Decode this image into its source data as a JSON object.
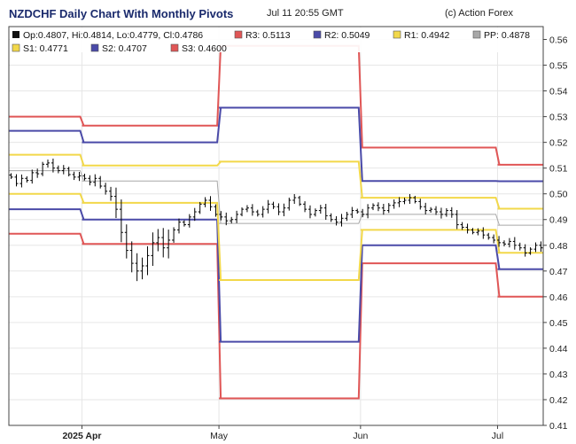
{
  "header": {
    "title": "NZDCHF Daily Chart With Monthly Pivots",
    "timestamp": "Jul 11 20:55 GMT",
    "credit": "(c) Action Forex"
  },
  "colors": {
    "r3": "#e05656",
    "r2": "#4a4aa8",
    "r1": "#f2d84a",
    "pp": "#a8a8a8",
    "s1": "#f2d84a",
    "s2": "#4a4aa8",
    "s3": "#e05656",
    "candle": "#000000",
    "grid": "#e6e6e6",
    "frame": "#444444"
  },
  "legend": {
    "ohlc": "Op:0.4807, Hi:0.4814, Lo:0.4779, Cl:0.4786",
    "items": [
      {
        "key": "r3",
        "label": "R3: 0.5113"
      },
      {
        "key": "r2",
        "label": "R2: 0.5049"
      },
      {
        "key": "r1",
        "label": "R1: 0.4942"
      },
      {
        "key": "pp",
        "label": "PP: 0.4878"
      },
      {
        "key": "s1",
        "label": "S1: 0.4771"
      },
      {
        "key": "s2",
        "label": "S2: 0.4707"
      },
      {
        "key": "s3",
        "label": "S3: 0.4600"
      }
    ]
  },
  "chart_data": {
    "type": "candlestick",
    "title": "NZDCHF Daily Chart With Monthly Pivots",
    "ylim": [
      0.41,
      0.565
    ],
    "y_ticks": [
      "0.56",
      "0.55",
      "0.54",
      "0.53",
      "0.52",
      "0.51",
      "0.50",
      "0.49",
      "0.48",
      "0.47",
      "0.46",
      "0.45",
      "0.44",
      "0.43",
      "0.42",
      "0.41"
    ],
    "x_range_days": [
      -16,
      101
    ],
    "x_ticks": [
      {
        "day": 0,
        "label": "2025 Apr",
        "bold": true
      },
      {
        "day": 30,
        "label": "May",
        "bold": false
      },
      {
        "day": 61,
        "label": "Jun",
        "bold": false
      },
      {
        "day": 91,
        "label": "Jul",
        "bold": false
      }
    ],
    "pivots": {
      "segments": [
        {
          "start": -16,
          "end": 0,
          "r3": 0.53,
          "r2": 0.5245,
          "r1": 0.5152,
          "pp": 0.509,
          "s1": 0.5,
          "s2": 0.494,
          "s3": 0.4845
        },
        {
          "start": 0,
          "end": 30,
          "r3": 0.5265,
          "r2": 0.52,
          "r1": 0.511,
          "pp": 0.505,
          "s1": 0.4965,
          "s2": 0.49,
          "s3": 0.4805
        },
        {
          "start": 30,
          "end": 61,
          "r3": 0.5575,
          "r2": 0.5335,
          "r1": 0.5125,
          "pp": 0.4885,
          "s1": 0.4665,
          "s2": 0.4425,
          "s3": 0.4205
        },
        {
          "start": 61,
          "end": 91,
          "r3": 0.518,
          "r2": 0.505,
          "r1": 0.4985,
          "pp": 0.492,
          "s1": 0.486,
          "s2": 0.48,
          "s3": 0.473
        },
        {
          "start": 91,
          "end": 101,
          "r3": 0.5113,
          "r2": 0.5049,
          "r1": 0.4942,
          "pp": 0.4878,
          "s1": 0.4771,
          "s2": 0.4707,
          "s3": 0.46
        }
      ]
    },
    "close_series": [
      0.5065,
      0.504,
      0.506,
      0.5052,
      0.5082,
      0.5078,
      0.5115,
      0.512,
      0.51,
      0.509,
      0.5098,
      0.5075,
      0.5065,
      0.507,
      0.506,
      0.5045,
      0.506,
      0.503,
      0.501,
      0.499,
      0.494,
      0.485,
      0.478,
      0.473,
      0.47,
      0.472,
      0.476,
      0.481,
      0.483,
      0.479,
      0.482,
      0.486,
      0.489,
      0.488,
      0.491,
      0.493,
      0.496,
      0.4975,
      0.495,
      0.492,
      0.491,
      0.4895,
      0.49,
      0.492,
      0.494,
      0.4945,
      0.493,
      0.492,
      0.494,
      0.496,
      0.495,
      0.493,
      0.4945,
      0.4975,
      0.4985,
      0.496,
      0.494,
      0.492,
      0.4935,
      0.4945,
      0.4915,
      0.49,
      0.489,
      0.4905,
      0.492,
      0.4935,
      0.493,
      0.492,
      0.4945,
      0.4955,
      0.4945,
      0.4935,
      0.4955,
      0.4965,
      0.497,
      0.4975,
      0.4985,
      0.497,
      0.495,
      0.4935,
      0.494,
      0.493,
      0.492,
      0.4935,
      0.492,
      0.488,
      0.487,
      0.486,
      0.485,
      0.4855,
      0.484,
      0.483,
      0.482,
      0.481,
      0.4805,
      0.4815,
      0.48,
      0.479,
      0.477,
      0.4785,
      0.48,
      0.479
    ]
  }
}
